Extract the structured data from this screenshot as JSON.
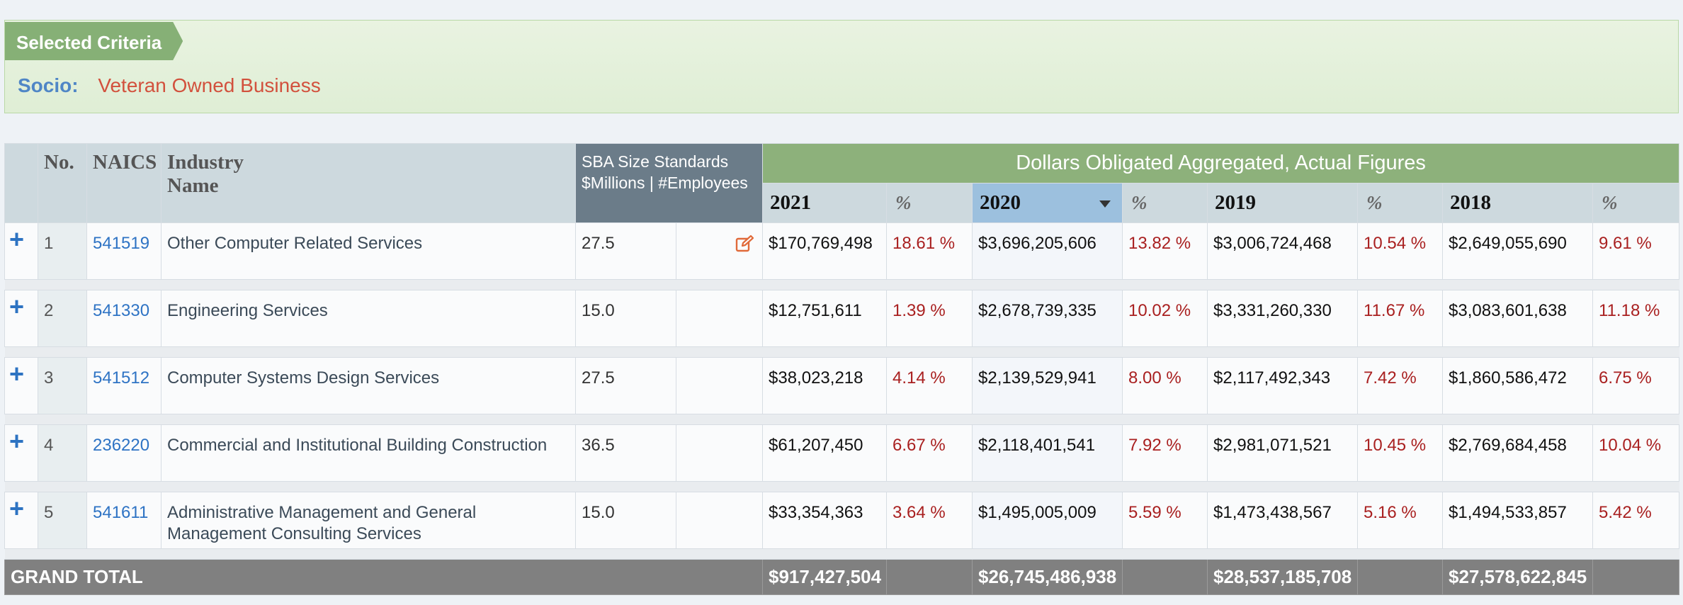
{
  "criteria": {
    "title": "Selected Criteria",
    "socio_label": "Socio:",
    "socio_value": "Veteran Owned Business"
  },
  "table": {
    "headers": {
      "no": "No.",
      "naics": "NAICS",
      "industry_line1": "Industry",
      "industry_line2": "Name",
      "sba_line1": "SBA Size Standards",
      "sba_line2": "$Millions | #Employees",
      "dollars": "Dollars Obligated Aggregated, Actual Figures",
      "pct": "%",
      "years": [
        "2021",
        "2020",
        "2019",
        "2018"
      ]
    },
    "expand_symbol": "+",
    "rows": [
      {
        "no": "1",
        "naics": "541519",
        "industry": "Other Computer Related Services",
        "sba": "27.5",
        "edit": true,
        "values": [
          [
            "$170,769,498",
            "18.61 %"
          ],
          [
            "$3,696,205,606",
            "13.82 %"
          ],
          [
            "$3,006,724,468",
            "10.54 %"
          ],
          [
            "$2,649,055,690",
            "9.61 %"
          ]
        ]
      },
      {
        "no": "2",
        "naics": "541330",
        "industry": "Engineering Services",
        "sba": "15.0",
        "edit": false,
        "values": [
          [
            "$12,751,611",
            "1.39 %"
          ],
          [
            "$2,678,739,335",
            "10.02 %"
          ],
          [
            "$3,331,260,330",
            "11.67 %"
          ],
          [
            "$3,083,601,638",
            "11.18 %"
          ]
        ]
      },
      {
        "no": "3",
        "naics": "541512",
        "industry": "Computer Systems Design Services",
        "sba": "27.5",
        "edit": false,
        "values": [
          [
            "$38,023,218",
            "4.14 %"
          ],
          [
            "$2,139,529,941",
            "8.00 %"
          ],
          [
            "$2,117,492,343",
            "7.42 %"
          ],
          [
            "$1,860,586,472",
            "6.75 %"
          ]
        ]
      },
      {
        "no": "4",
        "naics": "236220",
        "industry": "Commercial and Institutional Building Construction",
        "sba": "36.5",
        "edit": false,
        "values": [
          [
            "$61,207,450",
            "6.67 %"
          ],
          [
            "$2,118,401,541",
            "7.92 %"
          ],
          [
            "$2,981,071,521",
            "10.45 %"
          ],
          [
            "$2,769,684,458",
            "10.04 %"
          ]
        ]
      },
      {
        "no": "5",
        "naics": "541611",
        "industry": "Administrative Management and General Management Consulting Services",
        "sba": "15.0",
        "edit": false,
        "values": [
          [
            "$33,354,363",
            "3.64 %"
          ],
          [
            "$1,495,005,009",
            "5.59 %"
          ],
          [
            "$1,473,438,567",
            "5.16 %"
          ],
          [
            "$1,494,533,857",
            "5.42 %"
          ]
        ]
      }
    ],
    "total": {
      "label": "GRAND TOTAL",
      "values": [
        "$917,427,504",
        "$26,745,486,938",
        "$28,537,185,708",
        "$27,578,622,845"
      ]
    }
  },
  "icons": {
    "expand": "plus-icon",
    "edit": "edit-icon",
    "sort": "sort-desc-icon"
  },
  "colors": {
    "header_green": "#8db17b",
    "link_blue": "#2e73c4",
    "pct_red": "#a92020",
    "total_gray": "#808080"
  }
}
